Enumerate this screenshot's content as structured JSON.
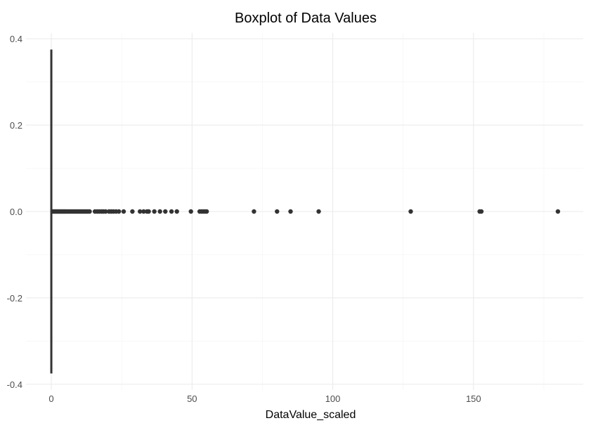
{
  "chart_data": {
    "type": "boxplot",
    "title": "Boxplot of Data Values",
    "xlabel": "DataValue_scaled",
    "ylabel": "",
    "xlim": [
      -9,
      189
    ],
    "ylim": [
      -0.4,
      0.4
    ],
    "x_ticks": [
      0,
      50,
      100,
      150
    ],
    "x_tick_labels": [
      "0",
      "50",
      "100",
      "150"
    ],
    "y_ticks": [
      0.4,
      0.2,
      0.0,
      -0.2,
      -0.4
    ],
    "y_tick_labels": [
      "0.4",
      "0.2",
      "0.0",
      "-0.2",
      "-0.4"
    ],
    "grid": true,
    "box": {
      "position_y": 0,
      "half_width": 0.375,
      "min": 0,
      "q1": 0,
      "median": 0,
      "q3": 0,
      "whisker_high": 0.5
    },
    "outliers": [
      0.6,
      1.0,
      1.4,
      1.8,
      2.2,
      2.6,
      3.0,
      3.4,
      3.8,
      4.2,
      4.6,
      5.0,
      5.5,
      6.0,
      6.5,
      7.0,
      7.5,
      8.0,
      8.5,
      9.0,
      9.5,
      10.0,
      10.5,
      11.0,
      11.5,
      12.0,
      12.5,
      13.0,
      13.6,
      15.5,
      16.3,
      17.0,
      17.8,
      18.5,
      19.3,
      20.5,
      21.3,
      22.1,
      23.0,
      24.0,
      25.7,
      28.8,
      31.5,
      32.8,
      34.0,
      34.6,
      36.6,
      38.6,
      40.5,
      42.7,
      44.6,
      49.6,
      52.7,
      53.4,
      54.0,
      54.6,
      55.2,
      72.0,
      80.2,
      85.0,
      95.0,
      127.7,
      152.2,
      152.8,
      180.0
    ]
  }
}
